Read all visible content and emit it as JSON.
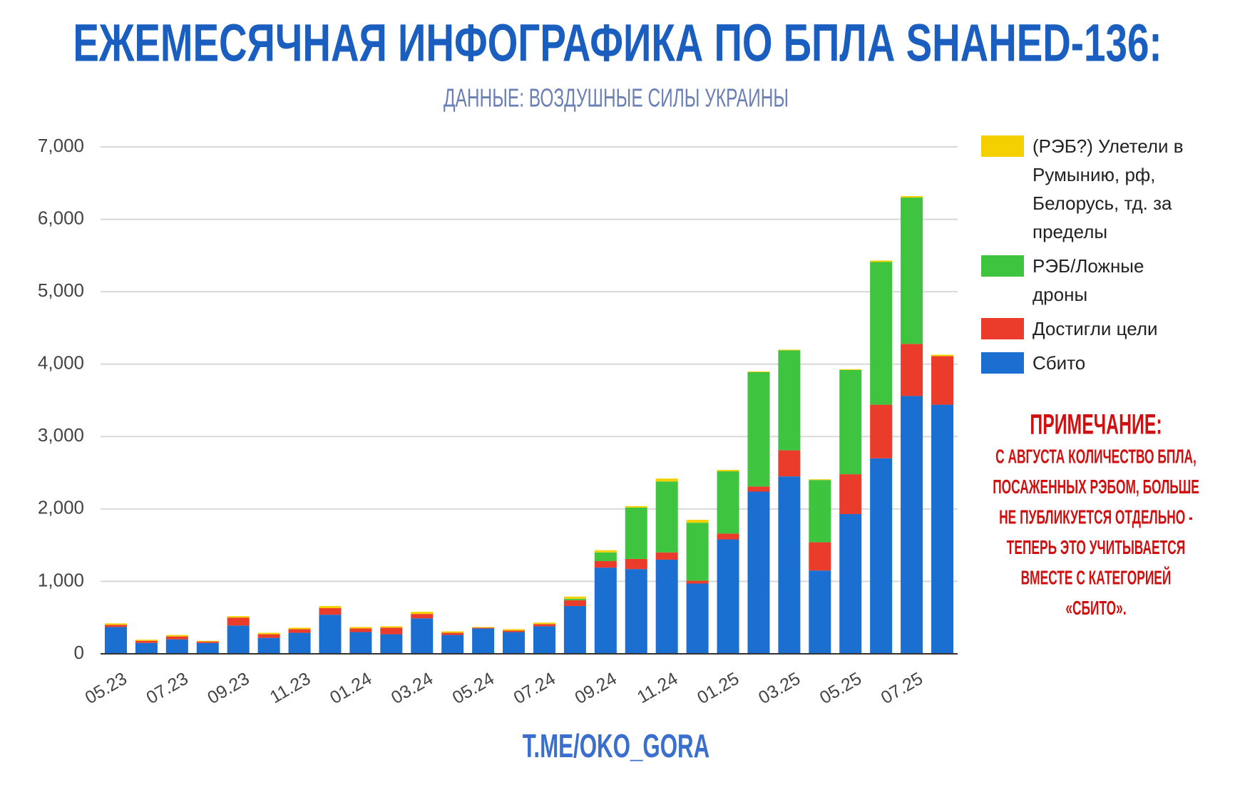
{
  "chart_data": {
    "type": "stacked_bar",
    "title": "ЕЖЕМЕСЯЧНАЯ ИНФОГРАФИКА ПО БПЛА SHAHED-136:",
    "subtitle": "ДАННЫЕ: ВОЗДУШНЫЕ СИЛЫ УКРАИНЫ",
    "footer": "T.ME/OKO_GORA",
    "categories": [
      "05.23",
      null,
      "07.23",
      null,
      "09.23",
      null,
      "11.23",
      null,
      "01.24",
      null,
      "03.24",
      null,
      "05.24",
      null,
      "07.24",
      null,
      "09.24",
      null,
      "11.24",
      null,
      "01.25",
      null,
      "03.25",
      null,
      "05.25",
      null,
      "07.25",
      null
    ],
    "series": [
      {
        "name": "Сбито",
        "color": "#1a6fd0",
        "values": [
          370,
          150,
          200,
          150,
          390,
          220,
          290,
          540,
          300,
          270,
          490,
          260,
          350,
          300,
          380,
          660,
          1190,
          1170,
          1300,
          970,
          1580,
          2240,
          2450,
          1150,
          1930,
          2700,
          3560,
          3440
        ]
      },
      {
        "name": "Достигли цели",
        "color": "#ea3b2b",
        "values": [
          30,
          30,
          40,
          20,
          110,
          50,
          50,
          90,
          50,
          90,
          60,
          30,
          10,
          20,
          30,
          80,
          90,
          140,
          100,
          40,
          80,
          70,
          360,
          390,
          550,
          740,
          720,
          670
        ]
      },
      {
        "name": "РЭБ/Ложные дроны",
        "color": "#3ec43e",
        "values": [
          0,
          0,
          0,
          0,
          0,
          0,
          0,
          0,
          0,
          0,
          0,
          0,
          0,
          0,
          0,
          20,
          120,
          710,
          980,
          800,
          860,
          1580,
          1380,
          860,
          1440,
          1970,
          2020,
          0
        ]
      },
      {
        "name": "(РЭБ?) Улетели в Румынию, рф, Белорусь, тд. за пределы",
        "color": "#f5d000",
        "values": [
          20,
          15,
          20,
          10,
          20,
          20,
          20,
          30,
          20,
          20,
          30,
          20,
          10,
          20,
          20,
          30,
          30,
          20,
          40,
          40,
          20,
          10,
          10,
          10,
          10,
          20,
          20,
          20
        ]
      }
    ],
    "ylim": [
      0,
      7000
    ],
    "yticks": [
      0,
      {
        "value": 1000,
        "label": "1,000"
      },
      {
        "value": 2000,
        "label": "2,000"
      },
      {
        "value": 3000,
        "label": "3,000"
      },
      {
        "value": 4000,
        "label": "4,000"
      },
      {
        "value": 5000,
        "label": "5,000"
      },
      {
        "value": 6000,
        "label": "6,000"
      },
      {
        "value": 7000,
        "label": "7,000"
      }
    ],
    "grid": true,
    "legend": "right",
    "note": {
      "title": "ПРИМЕЧАНИЕ:",
      "lines": [
        "С АВГУСТА КОЛИЧЕСТВО БПЛА,",
        "ПОСАЖЕННЫХ РЭБОМ, БОЛЬШЕ",
        "НЕ ПУБЛИКУЕТСЯ ОТДЕЛЬНО -",
        "ТЕПЕРЬ ЭТО УЧИТЫВАЕТСЯ",
        "ВМЕСТЕ С КАТЕГОРИЕЙ",
        "«СБИТО»."
      ]
    }
  }
}
